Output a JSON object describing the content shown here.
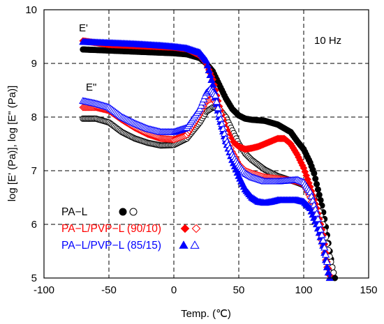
{
  "chart_data": {
    "type": "scatter",
    "xlabel": "Temp. (℃)",
    "ylabel": "log [E' (Pa)], log [E\" (Pa)]",
    "xlim": [
      -100,
      150
    ],
    "ylim": [
      5,
      10
    ],
    "x_ticks": [
      "-100",
      "-50",
      "0",
      "50",
      "100",
      "150"
    ],
    "y_ticks": [
      "5",
      "6",
      "7",
      "8",
      "9",
      "10"
    ],
    "grid": "dashed",
    "annotations": [
      "E'",
      "E\"",
      "10 Hz"
    ],
    "legend_placement": "bottom-left",
    "legend": [
      {
        "label": "PA−L",
        "color": "#000000",
        "filled": "circle",
        "open": "circle"
      },
      {
        "label": "PA−L/PVP−L (90/10)",
        "color": "#ff0000",
        "filled": "diamond",
        "open": "diamond"
      },
      {
        "label": "PA−L/PVP−L (85/15)",
        "color": "#0000ff",
        "filled": "triangle",
        "open": "triangle"
      }
    ],
    "series": [
      {
        "name": "PA−L",
        "modulus": "E'",
        "color": "#000000",
        "marker": "circle-filled",
        "points": [
          [
            -70,
            9.26
          ],
          [
            -50,
            9.24
          ],
          [
            -30,
            9.22
          ],
          [
            -10,
            9.2
          ],
          [
            0,
            9.19
          ],
          [
            10,
            9.17
          ],
          [
            20,
            9.1
          ],
          [
            25,
            9.0
          ],
          [
            30,
            8.85
          ],
          [
            35,
            8.6
          ],
          [
            40,
            8.35
          ],
          [
            45,
            8.15
          ],
          [
            50,
            8.03
          ],
          [
            55,
            7.97
          ],
          [
            60,
            7.95
          ],
          [
            70,
            7.93
          ],
          [
            80,
            7.86
          ],
          [
            90,
            7.72
          ],
          [
            95,
            7.55
          ],
          [
            100,
            7.4
          ],
          [
            105,
            7.15
          ],
          [
            108,
            6.95
          ],
          [
            110,
            6.75
          ],
          [
            112,
            6.55
          ],
          [
            114,
            6.35
          ],
          [
            116,
            6.1
          ],
          [
            118,
            5.8
          ],
          [
            120,
            5.5
          ],
          [
            122,
            5.2
          ],
          [
            124,
            5.0
          ]
        ]
      },
      {
        "name": "PA−L",
        "modulus": "E\"",
        "color": "#000000",
        "marker": "circle-open",
        "points": [
          [
            -70,
            7.97
          ],
          [
            -60,
            7.97
          ],
          [
            -50,
            7.9
          ],
          [
            -40,
            7.72
          ],
          [
            -30,
            7.6
          ],
          [
            -20,
            7.52
          ],
          [
            -10,
            7.47
          ],
          [
            0,
            7.48
          ],
          [
            10,
            7.6
          ],
          [
            20,
            7.9
          ],
          [
            25,
            8.1
          ],
          [
            30,
            8.18
          ],
          [
            35,
            8.15
          ],
          [
            40,
            8.0
          ],
          [
            45,
            7.75
          ],
          [
            50,
            7.5
          ],
          [
            55,
            7.32
          ],
          [
            60,
            7.2
          ],
          [
            70,
            7.02
          ],
          [
            80,
            6.9
          ],
          [
            90,
            6.82
          ],
          [
            95,
            6.78
          ],
          [
            100,
            6.73
          ],
          [
            105,
            6.6
          ],
          [
            110,
            6.4
          ],
          [
            115,
            6.0
          ],
          [
            120,
            5.4
          ],
          [
            123,
            5.1
          ]
        ]
      },
      {
        "name": "PA−L/PVP−L (90/10)",
        "modulus": "E'",
        "color": "#ff0000",
        "marker": "diamond-filled",
        "points": [
          [
            -70,
            9.42
          ],
          [
            -50,
            9.35
          ],
          [
            -30,
            9.33
          ],
          [
            -10,
            9.31
          ],
          [
            0,
            9.3
          ],
          [
            10,
            9.27
          ],
          [
            20,
            9.15
          ],
          [
            25,
            9.0
          ],
          [
            30,
            8.7
          ],
          [
            35,
            8.2
          ],
          [
            40,
            7.8
          ],
          [
            45,
            7.55
          ],
          [
            50,
            7.45
          ],
          [
            55,
            7.4
          ],
          [
            60,
            7.42
          ],
          [
            65,
            7.45
          ],
          [
            70,
            7.5
          ],
          [
            75,
            7.55
          ],
          [
            80,
            7.6
          ],
          [
            85,
            7.6
          ],
          [
            90,
            7.5
          ],
          [
            95,
            7.3
          ],
          [
            100,
            7.05
          ],
          [
            105,
            6.7
          ],
          [
            110,
            6.3
          ],
          [
            115,
            5.8
          ],
          [
            118,
            5.3
          ],
          [
            120,
            5.05
          ]
        ]
      },
      {
        "name": "PA−L/PVP−L (90/10)",
        "modulus": "E\"",
        "color": "#ff0000",
        "marker": "diamond-open",
        "points": [
          [
            -70,
            8.18
          ],
          [
            -60,
            8.18
          ],
          [
            -50,
            8.12
          ],
          [
            -40,
            7.95
          ],
          [
            -30,
            7.8
          ],
          [
            -20,
            7.68
          ],
          [
            -10,
            7.6
          ],
          [
            0,
            7.58
          ],
          [
            10,
            7.67
          ],
          [
            20,
            8.05
          ],
          [
            25,
            8.3
          ],
          [
            30,
            8.35
          ],
          [
            35,
            8.15
          ],
          [
            40,
            7.7
          ],
          [
            45,
            7.35
          ],
          [
            50,
            7.12
          ],
          [
            55,
            7.0
          ],
          [
            60,
            6.95
          ],
          [
            70,
            6.88
          ],
          [
            80,
            6.85
          ],
          [
            90,
            6.82
          ],
          [
            95,
            6.8
          ],
          [
            100,
            6.75
          ],
          [
            105,
            6.5
          ],
          [
            110,
            6.1
          ],
          [
            115,
            5.6
          ],
          [
            118,
            5.2
          ]
        ]
      },
      {
        "name": "PA−L/PVP−L (85/15)",
        "modulus": "E'",
        "color": "#0000ff",
        "marker": "triangle-filled",
        "points": [
          [
            -70,
            9.4
          ],
          [
            -50,
            9.38
          ],
          [
            -30,
            9.36
          ],
          [
            -10,
            9.33
          ],
          [
            0,
            9.31
          ],
          [
            10,
            9.28
          ],
          [
            20,
            9.2
          ],
          [
            25,
            9.05
          ],
          [
            30,
            8.6
          ],
          [
            35,
            8.0
          ],
          [
            40,
            7.55
          ],
          [
            45,
            7.2
          ],
          [
            50,
            6.9
          ],
          [
            55,
            6.65
          ],
          [
            60,
            6.5
          ],
          [
            65,
            6.42
          ],
          [
            70,
            6.4
          ],
          [
            75,
            6.42
          ],
          [
            80,
            6.45
          ],
          [
            85,
            6.45
          ],
          [
            90,
            6.45
          ],
          [
            95,
            6.45
          ],
          [
            100,
            6.42
          ],
          [
            105,
            6.3
          ],
          [
            110,
            6.0
          ],
          [
            115,
            5.6
          ],
          [
            118,
            5.2
          ],
          [
            120,
            5.0
          ]
        ]
      },
      {
        "name": "PA−L/PVP−L (85/15)",
        "modulus": "E\"",
        "color": "#0000ff",
        "marker": "triangle-open",
        "points": [
          [
            -70,
            8.3
          ],
          [
            -60,
            8.25
          ],
          [
            -50,
            8.18
          ],
          [
            -40,
            8.0
          ],
          [
            -30,
            7.88
          ],
          [
            -20,
            7.78
          ],
          [
            -10,
            7.72
          ],
          [
            0,
            7.72
          ],
          [
            10,
            7.8
          ],
          [
            20,
            8.15
          ],
          [
            25,
            8.45
          ],
          [
            28,
            8.52
          ],
          [
            32,
            8.4
          ],
          [
            35,
            8.05
          ],
          [
            40,
            7.6
          ],
          [
            45,
            7.3
          ],
          [
            50,
            7.1
          ],
          [
            55,
            6.95
          ],
          [
            60,
            6.88
          ],
          [
            70,
            6.8
          ],
          [
            80,
            6.8
          ],
          [
            90,
            6.82
          ],
          [
            95,
            6.83
          ],
          [
            100,
            6.78
          ],
          [
            105,
            6.6
          ],
          [
            110,
            6.2
          ],
          [
            115,
            5.7
          ],
          [
            118,
            5.3
          ]
        ]
      }
    ]
  }
}
